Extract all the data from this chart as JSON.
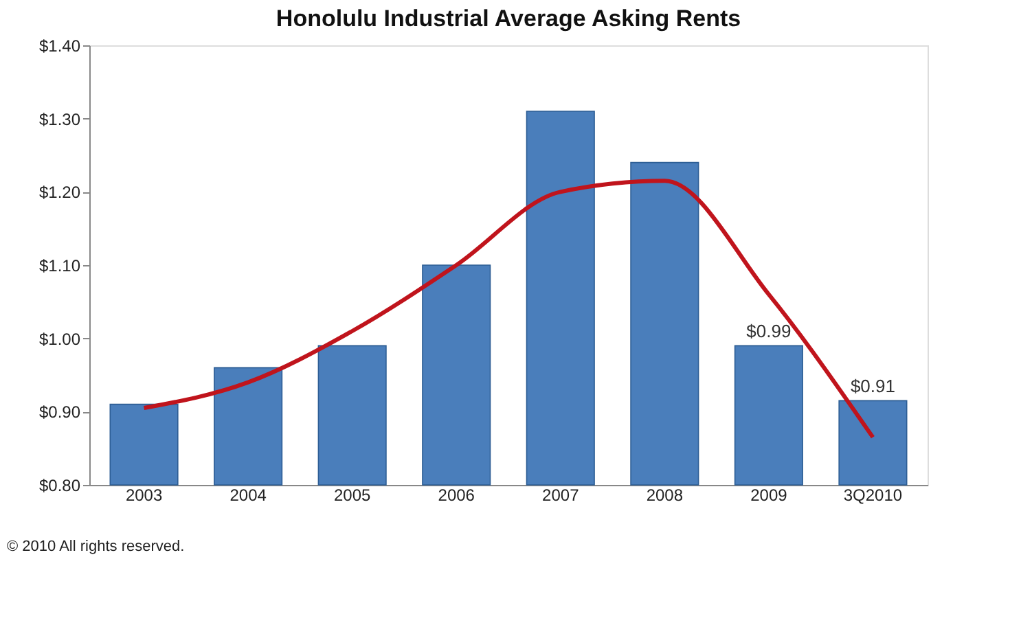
{
  "chart_data": {
    "type": "bar",
    "title": "Honolulu Industrial Average Asking Rents",
    "categories": [
      "2003",
      "2004",
      "2005",
      "2006",
      "2007",
      "2008",
      "2009",
      "3Q2010"
    ],
    "series": [
      {
        "color": "#4a7ebb",
        "values": [
          0.91,
          0.96,
          0.99,
          1.1,
          1.31,
          1.24,
          0.99,
          0.915
        ],
        "value_labels": [
          null,
          null,
          null,
          null,
          null,
          null,
          "$0.99",
          "$0.91"
        ]
      },
      {
        "type": "line",
        "color": "#c0141c",
        "values": [
          0.905,
          0.94,
          1.01,
          1.1,
          1.2,
          1.215,
          1.06,
          0.865
        ]
      }
    ],
    "ylim": [
      0.8,
      1.4
    ],
    "yticks": [
      {
        "value": 0.8,
        "label": "$0.80"
      },
      {
        "value": 0.9,
        "label": "$0.90"
      },
      {
        "value": 1.0,
        "label": "$1.00"
      },
      {
        "value": 1.1,
        "label": "$1.10"
      },
      {
        "value": 1.2,
        "label": "$1.20"
      },
      {
        "value": 1.3,
        "label": "$1.30"
      },
      {
        "value": 1.4,
        "label": "$1.40"
      }
    ],
    "grid": false,
    "marker": "none",
    "line_style": "solid",
    "annotations": [
      "© 2010 All rights reserved."
    ]
  }
}
